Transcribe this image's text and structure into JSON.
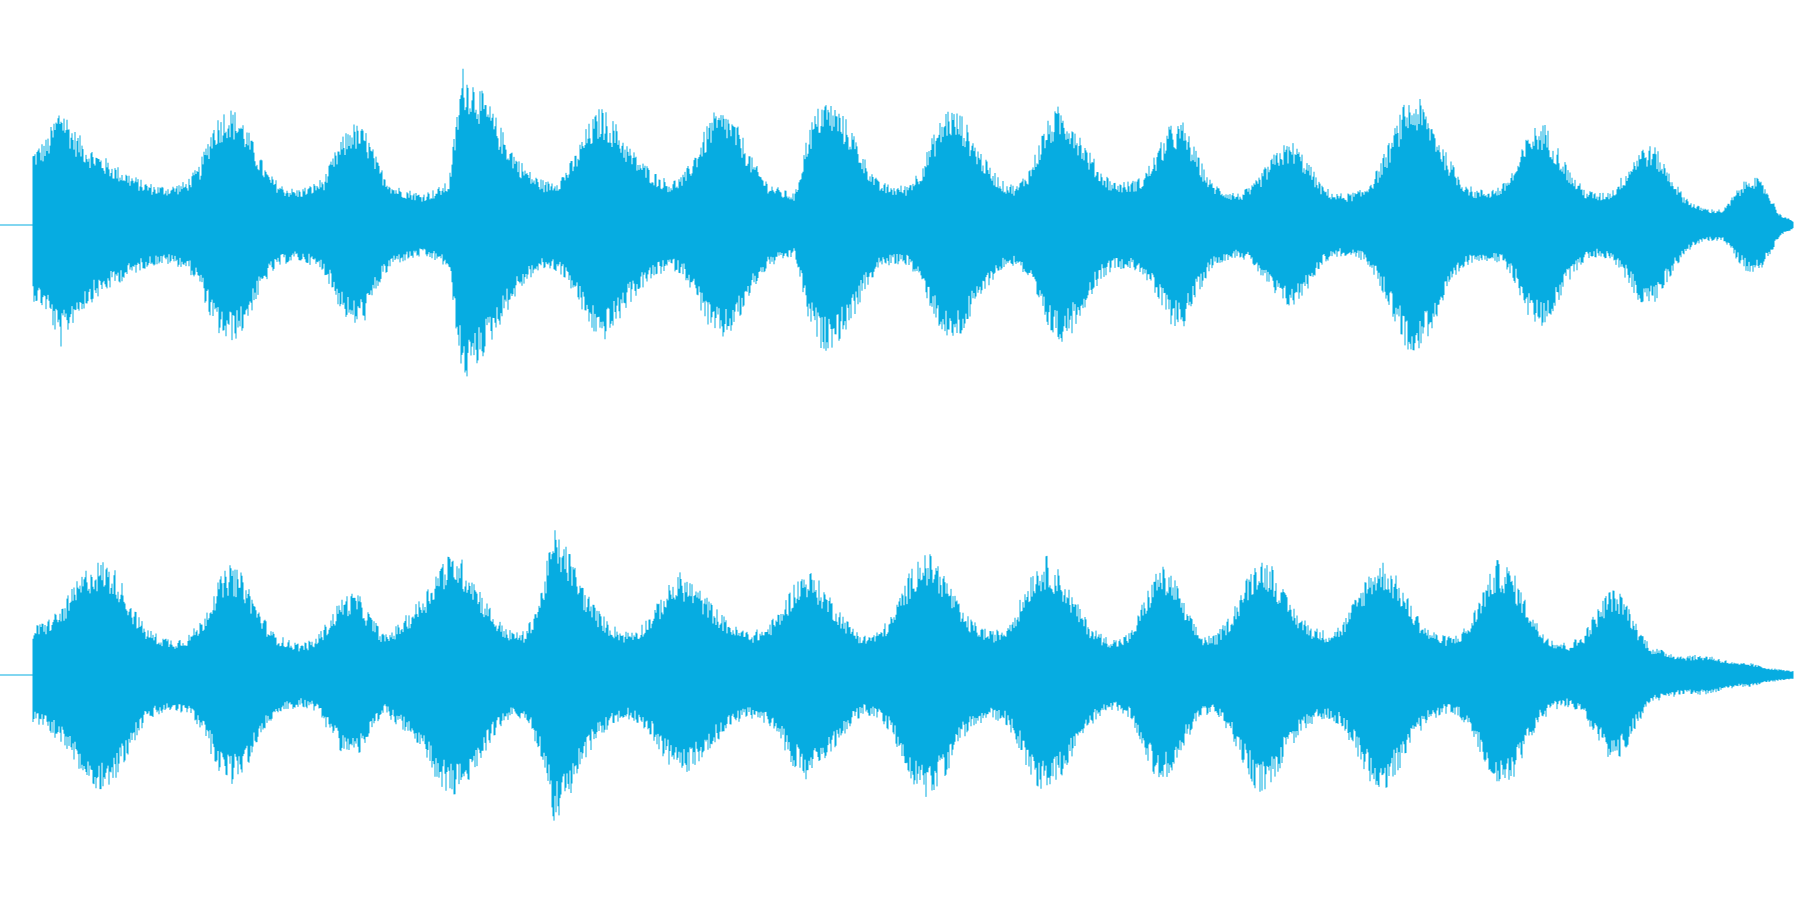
{
  "waveform": {
    "color": "#06ace1",
    "channel_count": 2,
    "channels": [
      {
        "peak_envelope": [
          0.38,
          0.44,
          0.62,
          0.48,
          0.4,
          0.35,
          0.3,
          0.26,
          0.22,
          0.2,
          0.2,
          0.22,
          0.3,
          0.52,
          0.6,
          0.56,
          0.4,
          0.26,
          0.2,
          0.18,
          0.2,
          0.24,
          0.4,
          0.52,
          0.48,
          0.3,
          0.2,
          0.18,
          0.16,
          0.18,
          0.22,
          0.8,
          0.72,
          0.6,
          0.46,
          0.34,
          0.26,
          0.22,
          0.24,
          0.34,
          0.5,
          0.6,
          0.52,
          0.4,
          0.32,
          0.26,
          0.22,
          0.26,
          0.4,
          0.56,
          0.58,
          0.48,
          0.32,
          0.22,
          0.18,
          0.16,
          0.5,
          0.64,
          0.6,
          0.5,
          0.34,
          0.22,
          0.2,
          0.2,
          0.28,
          0.46,
          0.6,
          0.56,
          0.42,
          0.3,
          0.22,
          0.2,
          0.3,
          0.5,
          0.6,
          0.54,
          0.4,
          0.28,
          0.22,
          0.22,
          0.24,
          0.36,
          0.5,
          0.52,
          0.36,
          0.22,
          0.18,
          0.16,
          0.2,
          0.3,
          0.4,
          0.42,
          0.32,
          0.2,
          0.16,
          0.16,
          0.18,
          0.28,
          0.44,
          0.62,
          0.64,
          0.52,
          0.36,
          0.24,
          0.18,
          0.18,
          0.2,
          0.3,
          0.48,
          0.52,
          0.4,
          0.26,
          0.18,
          0.16,
          0.18,
          0.28,
          0.4,
          0.4,
          0.28,
          0.16,
          0.1,
          0.08,
          0.08,
          0.18,
          0.26,
          0.2,
          0.06,
          0.02
        ],
        "floor_envelope": [
          0.22,
          0.2,
          0.18,
          0.14,
          0.1,
          0.1,
          0.1,
          0.09,
          0.09,
          0.09,
          0.09,
          0.09,
          0.1,
          0.14,
          0.18,
          0.16,
          0.12,
          0.09,
          0.08,
          0.08,
          0.08,
          0.1,
          0.14,
          0.18,
          0.16,
          0.1,
          0.08,
          0.08,
          0.07,
          0.07,
          0.08,
          0.18,
          0.16,
          0.14,
          0.12,
          0.1,
          0.09,
          0.09,
          0.09,
          0.1,
          0.14,
          0.16,
          0.14,
          0.12,
          0.1,
          0.09,
          0.09,
          0.09,
          0.12,
          0.16,
          0.16,
          0.14,
          0.1,
          0.09,
          0.08,
          0.08,
          0.16,
          0.18,
          0.16,
          0.14,
          0.1,
          0.09,
          0.08,
          0.08,
          0.09,
          0.13,
          0.16,
          0.15,
          0.12,
          0.1,
          0.09,
          0.08,
          0.1,
          0.14,
          0.16,
          0.15,
          0.12,
          0.1,
          0.09,
          0.09,
          0.09,
          0.11,
          0.14,
          0.15,
          0.11,
          0.09,
          0.08,
          0.08,
          0.08,
          0.1,
          0.12,
          0.13,
          0.1,
          0.08,
          0.07,
          0.07,
          0.08,
          0.09,
          0.12,
          0.16,
          0.17,
          0.14,
          0.1,
          0.09,
          0.08,
          0.08,
          0.08,
          0.1,
          0.13,
          0.14,
          0.11,
          0.09,
          0.07,
          0.07,
          0.07,
          0.08,
          0.11,
          0.11,
          0.08,
          0.07,
          0.06,
          0.05,
          0.05,
          0.06,
          0.08,
          0.07,
          0.03,
          0.01
        ]
      },
      {
        "peak_envelope": [
          0.24,
          0.28,
          0.34,
          0.46,
          0.56,
          0.58,
          0.52,
          0.36,
          0.24,
          0.2,
          0.18,
          0.2,
          0.28,
          0.46,
          0.56,
          0.5,
          0.34,
          0.22,
          0.18,
          0.16,
          0.18,
          0.28,
          0.4,
          0.42,
          0.3,
          0.2,
          0.26,
          0.34,
          0.44,
          0.58,
          0.62,
          0.54,
          0.4,
          0.28,
          0.22,
          0.22,
          0.4,
          0.74,
          0.64,
          0.46,
          0.34,
          0.26,
          0.22,
          0.24,
          0.32,
          0.44,
          0.52,
          0.46,
          0.38,
          0.3,
          0.24,
          0.22,
          0.24,
          0.32,
          0.46,
          0.54,
          0.46,
          0.36,
          0.26,
          0.2,
          0.22,
          0.3,
          0.48,
          0.62,
          0.6,
          0.48,
          0.32,
          0.26,
          0.22,
          0.24,
          0.36,
          0.54,
          0.6,
          0.52,
          0.38,
          0.26,
          0.2,
          0.18,
          0.22,
          0.4,
          0.56,
          0.5,
          0.32,
          0.2,
          0.2,
          0.3,
          0.46,
          0.6,
          0.56,
          0.4,
          0.3,
          0.24,
          0.22,
          0.26,
          0.4,
          0.54,
          0.58,
          0.48,
          0.34,
          0.24,
          0.2,
          0.2,
          0.26,
          0.44,
          0.58,
          0.54,
          0.38,
          0.24,
          0.18,
          0.16,
          0.2,
          0.32,
          0.44,
          0.4,
          0.24,
          0.14,
          0.12,
          0.1,
          0.1,
          0.1,
          0.08,
          0.06,
          0.06,
          0.04,
          0.03,
          0.02
        ],
        "floor_envelope": [
          0.1,
          0.1,
          0.11,
          0.13,
          0.16,
          0.16,
          0.15,
          0.11,
          0.09,
          0.08,
          0.08,
          0.08,
          0.09,
          0.13,
          0.15,
          0.14,
          0.1,
          0.08,
          0.07,
          0.07,
          0.07,
          0.09,
          0.11,
          0.12,
          0.09,
          0.07,
          0.09,
          0.1,
          0.12,
          0.15,
          0.16,
          0.15,
          0.12,
          0.1,
          0.09,
          0.09,
          0.12,
          0.18,
          0.16,
          0.13,
          0.1,
          0.09,
          0.09,
          0.09,
          0.1,
          0.12,
          0.14,
          0.13,
          0.11,
          0.1,
          0.09,
          0.09,
          0.09,
          0.1,
          0.13,
          0.15,
          0.13,
          0.11,
          0.09,
          0.08,
          0.09,
          0.1,
          0.13,
          0.16,
          0.16,
          0.13,
          0.1,
          0.09,
          0.09,
          0.09,
          0.11,
          0.14,
          0.16,
          0.14,
          0.11,
          0.09,
          0.08,
          0.08,
          0.09,
          0.11,
          0.15,
          0.14,
          0.1,
          0.08,
          0.08,
          0.1,
          0.13,
          0.16,
          0.15,
          0.11,
          0.1,
          0.09,
          0.09,
          0.09,
          0.11,
          0.14,
          0.15,
          0.13,
          0.1,
          0.09,
          0.08,
          0.08,
          0.09,
          0.12,
          0.15,
          0.14,
          0.11,
          0.09,
          0.08,
          0.07,
          0.08,
          0.1,
          0.12,
          0.11,
          0.08,
          0.06,
          0.05,
          0.05,
          0.05,
          0.05,
          0.04,
          0.03,
          0.03,
          0.02,
          0.02,
          0.01
        ]
      }
    ]
  }
}
